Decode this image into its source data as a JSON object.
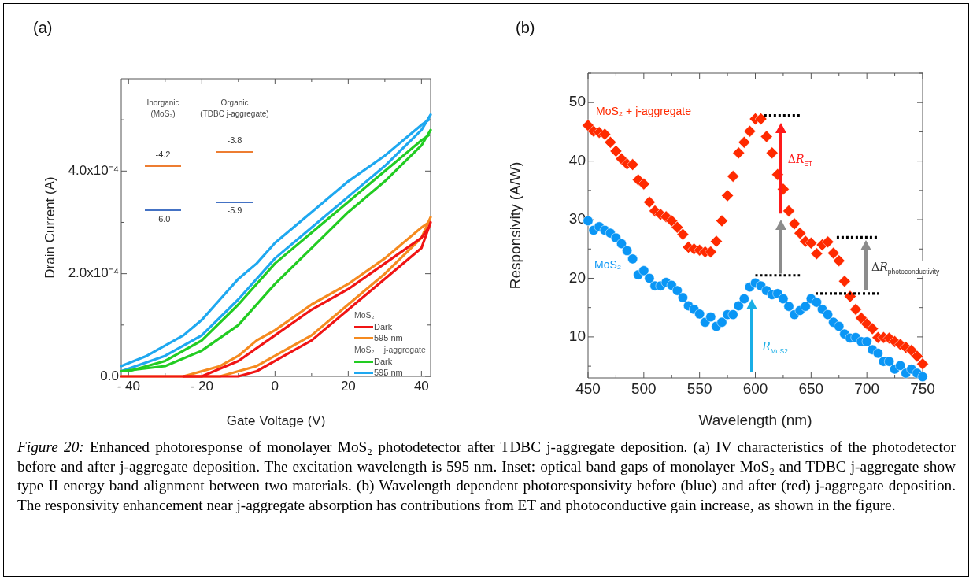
{
  "chart_data": [
    {
      "type": "line",
      "title": "(a)",
      "xlabel": "Gate Voltage (V)",
      "ylabel": "Drain Current (A)",
      "xlim": [
        -42,
        42.5
      ],
      "xticks": [
        {
          "value": -40,
          "label": "- 40"
        },
        {
          "value": -30,
          "label": null
        },
        {
          "value": -20,
          "label": "- 20"
        },
        {
          "value": -10,
          "label": null
        },
        0,
        {
          "value": 10,
          "label": null
        },
        20,
        {
          "value": 30,
          "label": null
        },
        40
      ],
      "ylim": [
        0,
        0.00058
      ],
      "yticks": [
        {
          "value": 0,
          "label": "0.0"
        },
        {
          "value": 0.0001,
          "label": null
        },
        {
          "value": 0.0002,
          "label": "2.0x10⁻⁴"
        },
        {
          "value": 0.0003,
          "label": null
        },
        {
          "value": 0.0004,
          "label": "4.0x10⁻⁴"
        },
        {
          "value": 0.0005,
          "label": null
        }
      ],
      "legend": "bottom right",
      "marker": "none",
      "line_style": "solid",
      "series": [
        {
          "name": "Dark",
          "color": "#f01414",
          "x": [
            -42,
            -20,
            -10,
            -5,
            0,
            10,
            20,
            30,
            40,
            42.5
          ],
          "values": [
            0,
            0,
            0,
            1e-05,
            3e-05,
            7e-05,
            0.00013,
            0.00019,
            0.00025,
            0.0003
          ]
        },
        {
          "color": "#f01414",
          "x": [
            -25,
            -20,
            -10,
            0,
            10,
            20,
            30,
            40,
            42
          ],
          "values": [
            0,
            0,
            3e-05,
            8e-05,
            0.00013,
            0.00017,
            0.00022,
            0.00027,
            0.00029
          ]
        },
        {
          "name": "595 nm",
          "color": "#f58a1f",
          "x": [
            -42,
            -15,
            -10,
            -5,
            0,
            10,
            20,
            30,
            40,
            42.5
          ],
          "values": [
            0,
            0,
            1e-05,
            2e-05,
            4e-05,
            8e-05,
            0.00014,
            0.0002,
            0.00027,
            0.00031
          ]
        },
        {
          "color": "#f58a1f",
          "x": [
            -25,
            -20,
            -15,
            -10,
            -5,
            0,
            10,
            20,
            30,
            40,
            42
          ],
          "values": [
            0,
            1e-05,
            2e-05,
            4e-05,
            7e-05,
            9e-05,
            0.00014,
            0.00018,
            0.00023,
            0.00029,
            0.0003
          ]
        },
        {
          "name": "Dark",
          "color": "#22cc22",
          "x": [
            -42,
            -30,
            -20,
            -10,
            0,
            10,
            20,
            30,
            40,
            42.5
          ],
          "values": [
            1e-05,
            2e-05,
            5e-05,
            0.0001,
            0.00018,
            0.00025,
            0.00032,
            0.00038,
            0.00045,
            0.00048
          ]
        },
        {
          "color": "#22cc22",
          "x": [
            -40,
            -30,
            -20,
            -10,
            0,
            10,
            20,
            30,
            40,
            42
          ],
          "values": [
            1e-05,
            3e-05,
            7e-05,
            0.00014,
            0.00022,
            0.00028,
            0.00034,
            0.0004,
            0.00046,
            0.00047
          ]
        },
        {
          "name": "595 nm",
          "color": "#1ea8f0",
          "x": [
            -42,
            -30,
            -20,
            -10,
            0,
            10,
            20,
            30,
            40,
            42.5
          ],
          "values": [
            1e-05,
            4e-05,
            8e-05,
            0.00015,
            0.00023,
            0.00029,
            0.00035,
            0.00041,
            0.00048,
            0.00051
          ]
        },
        {
          "color": "#1ea8f0",
          "x": [
            -42,
            -35,
            -30,
            -25,
            -20,
            -15,
            -10,
            -5,
            0,
            10,
            20,
            30,
            40,
            42
          ],
          "values": [
            2e-05,
            4e-05,
            6e-05,
            8e-05,
            0.00011,
            0.00015,
            0.00019,
            0.00022,
            0.00026,
            0.00032,
            0.00038,
            0.00043,
            0.00049,
            0.0005
          ]
        }
      ],
      "annotations": [
        "Inorganic\n(MoS₂)",
        "Organic\n(TDBC j-aggregate)",
        "-4.2",
        "-6.0",
        "-3.8",
        "-5.9",
        "MoS₂",
        "MoS₂ + j-aggregate",
        "Figure 20:",
        "Enhanced photoresponse of monolayer MoS₂ photodetector after TDBC j-aggregate deposition. (a) IV characteristics of the photodetector before and after j-aggregate deposition. The excitation wavelength is 595 nm. Inset: optical band gaps of monolayer MoS₂ and TDBC j-aggregate show type II energy band alignment between two materials. (b) Wavelength dependent photoresponsivity before (blue) and after (red) j-aggregate deposition. The responsivity enhancement near j-aggregate absorption has contributions from ET and photoconductive gain increase, as shown in the figure."
      ]
    },
    {
      "type": "scatter",
      "title": "(b)",
      "xlabel": "Wavelength (nm)",
      "ylabel": "Responsivity (A/W)",
      "xlim": [
        450,
        750
      ],
      "xticks": [
        450,
        {
          "value": 475,
          "label": null
        },
        500,
        {
          "value": 525,
          "label": null
        },
        550,
        {
          "value": 575,
          "label": null
        },
        600,
        {
          "value": 625,
          "label": null
        },
        650,
        {
          "value": 675,
          "label": null
        },
        700,
        {
          "value": 725,
          "label": null
        },
        750
      ],
      "ylim": [
        3,
        55
      ],
      "yticks": [
        {
          "value": 5,
          "label": null
        },
        10,
        {
          "value": 15,
          "label": null
        },
        20,
        {
          "value": 25,
          "label": null
        },
        30,
        {
          "value": 35,
          "label": null
        },
        40,
        {
          "value": 45,
          "label": null
        },
        50,
        {
          "value": 55,
          "label": null
        }
      ],
      "x": [
        450,
        455,
        460,
        465,
        470,
        475,
        480,
        485,
        490,
        495,
        500,
        505,
        510,
        515,
        520,
        525,
        530,
        535,
        540,
        545,
        550,
        555,
        560,
        565,
        570,
        575,
        580,
        585,
        590,
        595,
        600,
        605,
        610,
        615,
        620,
        625,
        630,
        635,
        640,
        645,
        650,
        655,
        660,
        665,
        670,
        675,
        680,
        685,
        690,
        695,
        700,
        705,
        710,
        715,
        720,
        725,
        730,
        735,
        740,
        745,
        750
      ],
      "series": [
        {
          "name": "MoS₂ + j-aggregate",
          "color": "#ff2a00",
          "marker": "diamond",
          "values": [
            46.1,
            45.1,
            44.9,
            44.6,
            43.2,
            41.7,
            40.4,
            39.5,
            39.4,
            36.8,
            36.1,
            33.0,
            31.5,
            30.9,
            30.5,
            29.8,
            28.7,
            27.5,
            25.3,
            25.0,
            24.8,
            24.5,
            24.5,
            26.3,
            29.8,
            34.1,
            37.4,
            41.4,
            43.2,
            45.1,
            47.2,
            47.2,
            44.2,
            41.4,
            37.7,
            35.2,
            31.5,
            29.3,
            27.7,
            26.3,
            26.0,
            24.2,
            25.7,
            26.2,
            24.3,
            23.0,
            19.5,
            16.9,
            14.7,
            13.2,
            12.2,
            11.4,
            9.9,
            9.9,
            9.8,
            9.2,
            8.7,
            8.2,
            7.7,
            6.7,
            5.4
          ]
        },
        {
          "type": "line",
          "color": "#000000",
          "marker": "none",
          "line_style": "dotted",
          "x": [
            608,
            640
          ],
          "values": [
            47.8,
            47.8
          ]
        },
        {
          "type": "line",
          "color": "#000000",
          "marker": "none",
          "line_style": "dotted",
          "x": [
            600,
            640
          ],
          "values": [
            20.5,
            20.5
          ]
        },
        {
          "type": "line",
          "color": "#000000",
          "marker": "none",
          "line_style": "dotted",
          "x": [
            673,
            710
          ],
          "values": [
            27,
            27
          ]
        },
        {
          "type": "line",
          "color": "#000000",
          "marker": "none",
          "line_style": "dotted",
          "x": [
            654,
            713
          ],
          "values": [
            17.4,
            17.4
          ]
        },
        {
          "name": "MoS₂",
          "color": "#0a96f5",
          "marker": "circle",
          "values": [
            29.8,
            28.2,
            28.8,
            28.2,
            27.7,
            26.9,
            25.9,
            24.7,
            23.3,
            20.6,
            21.3,
            20.0,
            18.7,
            18.7,
            19.3,
            18.8,
            17.9,
            16.7,
            15.3,
            14.7,
            13.9,
            12.5,
            13.4,
            11.8,
            12.5,
            13.8,
            13.8,
            15.3,
            16.5,
            18.5,
            19.2,
            18.7,
            17.9,
            17.2,
            17.4,
            16.5,
            15.2,
            13.8,
            14.5,
            15.2,
            16.5,
            15.9,
            14.7,
            13.8,
            12.5,
            11.8,
            10.5,
            9.8,
            9.9,
            9.2,
            9.2,
            7.8,
            7.2,
            5.8,
            5.8,
            4.5,
            5.1,
            3.8,
            4.5,
            3.8,
            3.2
          ]
        }
      ],
      "annotations": [
        "ΔR$_{ET}$",
        "R$_{MoS2}$",
        "ΔR$_{photoconductivity}$"
      ]
    }
  ]
}
